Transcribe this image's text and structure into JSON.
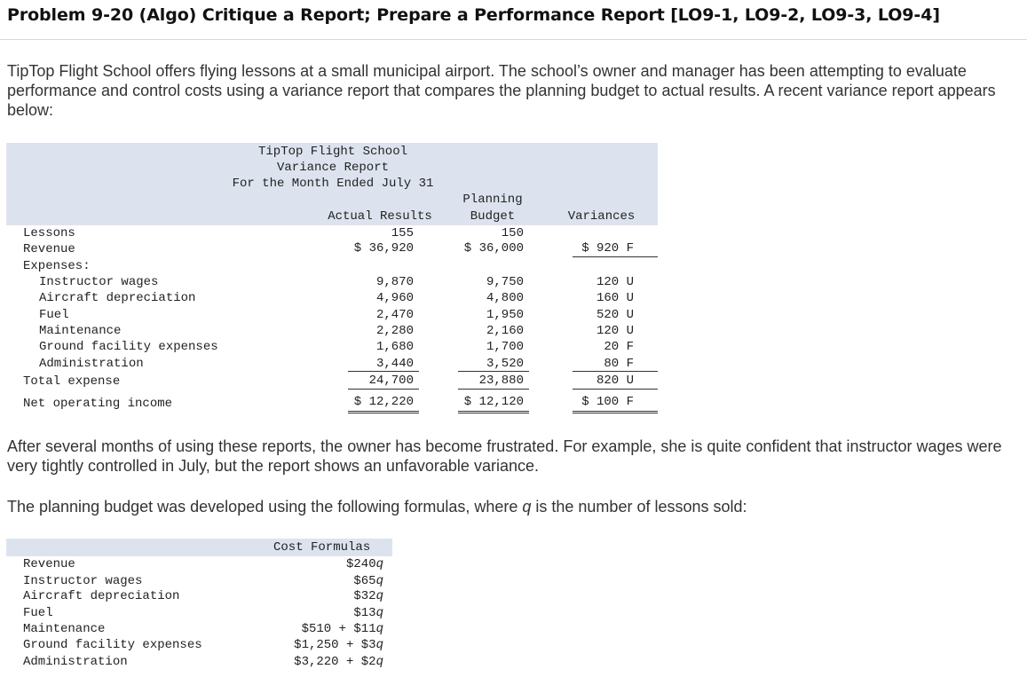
{
  "title": "Problem 9-20 (Algo) Critique a Report; Prepare a Performance Report [LO9-1, LO9-2, LO9-3, LO9-4]",
  "intro": "TipTop Flight School offers flying lessons at a small municipal airport. The school’s owner and manager has been attempting to evaluate performance and control costs using a variance report that compares the planning budget to actual results. A recent variance report appears below:",
  "report": {
    "company": "TipTop Flight School",
    "name": "Variance Report",
    "period": "For the Month Ended July 31",
    "col_actual": "Actual Results",
    "col_planning_1": "Planning",
    "col_planning_2": "Budget",
    "col_variances": "Variances",
    "rows": {
      "lessons": {
        "label": "Lessons",
        "actual": "155",
        "planning": "150",
        "variance": ""
      },
      "revenue": {
        "label": "Revenue",
        "actual": "$ 36,920",
        "planning": "$ 36,000",
        "variance": "$ 920 F"
      },
      "expenses_header": "Expenses:",
      "instructor_wages": {
        "label": "Instructor wages",
        "actual": "9,870",
        "planning": "9,750",
        "variance": "120 U"
      },
      "aircraft_depreciation": {
        "label": "Aircraft depreciation",
        "actual": "4,960",
        "planning": "4,800",
        "variance": "160 U"
      },
      "fuel": {
        "label": "Fuel",
        "actual": "2,470",
        "planning": "1,950",
        "variance": "520 U"
      },
      "maintenance": {
        "label": "Maintenance",
        "actual": "2,280",
        "planning": "2,160",
        "variance": "120 U"
      },
      "ground_facility": {
        "label": "Ground facility expenses",
        "actual": "1,680",
        "planning": "1,700",
        "variance": "20 F"
      },
      "administration": {
        "label": "Administration",
        "actual": "3,440",
        "planning": "3,520",
        "variance": "80 F"
      },
      "total_expense": {
        "label": "Total expense",
        "actual": "24,700",
        "planning": "23,880",
        "variance": "820 U"
      },
      "net_operating_income": {
        "label": "Net operating income",
        "actual": "$ 12,220",
        "planning": "$ 12,120",
        "variance": "$ 100 F"
      }
    }
  },
  "paragraph2": "After several months of using these reports, the owner has become frustrated. For example, she is quite confident that instructor wages were very tightly controlled in July, but the report shows an unfavorable variance.",
  "paragraph3_before": "The planning budget was developed using the following formulas, where ",
  "paragraph3_var": "q",
  "paragraph3_after": " is the number of lessons sold:",
  "formulas": {
    "header": "Cost Formulas",
    "rows": [
      {
        "label": "Revenue",
        "prefix": "$240",
        "var": "q",
        "suffix": ""
      },
      {
        "label": "Instructor wages",
        "prefix": "$65",
        "var": "q",
        "suffix": ""
      },
      {
        "label": "Aircraft depreciation",
        "prefix": "$32",
        "var": "q",
        "suffix": ""
      },
      {
        "label": "Fuel",
        "prefix": "$13",
        "var": "q",
        "suffix": ""
      },
      {
        "label": "Maintenance",
        "prefix": "$510 + $11",
        "var": "q",
        "suffix": ""
      },
      {
        "label": "Ground facility expenses",
        "prefix": "$1,250 + $3",
        "var": "q",
        "suffix": ""
      },
      {
        "label": "Administration",
        "prefix": "$3,220 + $2",
        "var": "q",
        "suffix": ""
      }
    ]
  }
}
